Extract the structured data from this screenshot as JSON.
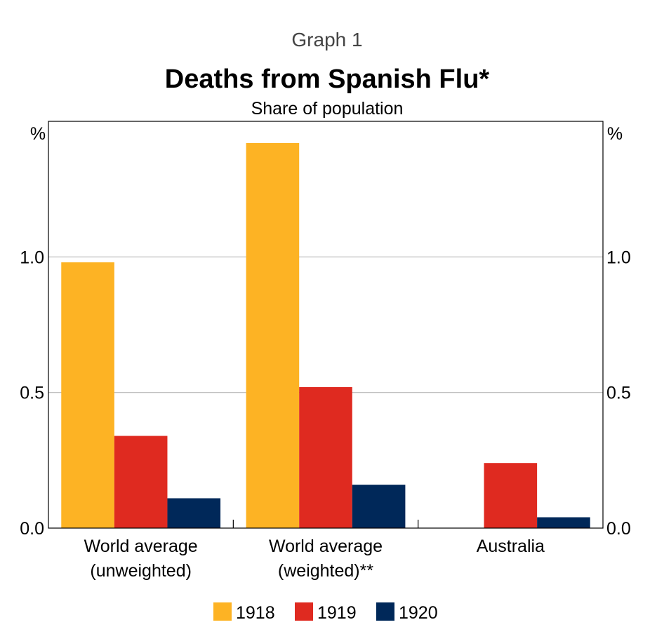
{
  "chart_data": {
    "type": "bar",
    "graph_number": "Graph 1",
    "title": "Deaths from Spanish Flu*",
    "subtitle": "Share of population",
    "y_unit_left": "%",
    "y_unit_right": "%",
    "ylim": [
      0,
      1.5
    ],
    "yticks": [
      {
        "value": 0,
        "label": "0.0"
      },
      {
        "value": 0.5,
        "label": "0.5"
      },
      {
        "value": 1.0,
        "label": "1.0"
      }
    ],
    "categories": [
      [
        "World average",
        "(unweighted)"
      ],
      [
        "World average",
        "(weighted)**"
      ],
      [
        "Australia"
      ]
    ],
    "series": [
      {
        "name": "1918",
        "color": "#FDB324",
        "values": [
          0.98,
          1.42,
          0
        ]
      },
      {
        "name": "1919",
        "color": "#DF2A20",
        "values": [
          0.34,
          0.52,
          0.24
        ]
      },
      {
        "name": "1920",
        "color": "#002859",
        "values": [
          0.11,
          0.16,
          0.04
        ]
      }
    ],
    "grid": true,
    "legend_position": "bottom"
  }
}
